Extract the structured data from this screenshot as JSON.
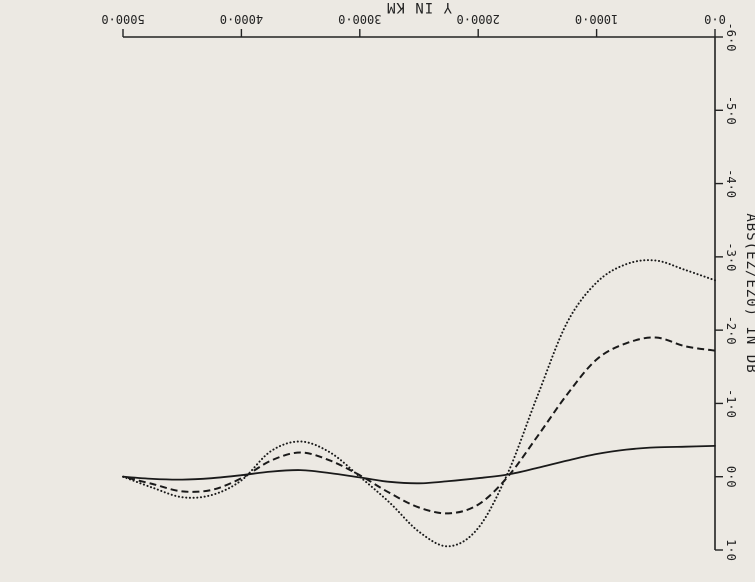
{
  "chart_data": {
    "type": "line",
    "orientation": "rotated-180",
    "title": "",
    "xlabel": "Y  IN  KM",
    "ylabel": "ABS(EZ/EZ0) IN DB",
    "xlim": [
      0,
      5000
    ],
    "ylim": [
      -6,
      1
    ],
    "x_ticks": [
      0,
      1000,
      2000,
      3000,
      4000,
      5000
    ],
    "x_tick_labels": [
      "0·0",
      "1000·0",
      "2000·0",
      "3000·0",
      "4000·0",
      "5000·0"
    ],
    "y_ticks": [
      1,
      0,
      -1,
      -2,
      -3,
      -4,
      -5,
      -6
    ],
    "y_tick_labels": [
      "1·0",
      "0·0",
      "-1·0",
      "-2·0",
      "-3·0",
      "-4·0",
      "-5·0",
      "-6·0"
    ],
    "grid": false,
    "legend": "none",
    "series": [
      {
        "style": "solid",
        "x": [
          0,
          250,
          500,
          750,
          1000,
          1250,
          1500,
          1750,
          2000,
          2250,
          2500,
          2750,
          3000,
          3250,
          3500,
          3750,
          4000,
          4250,
          4500,
          4750,
          5000
        ],
        "y": [
          -0.42,
          -0.41,
          -0.4,
          -0.37,
          -0.31,
          -0.22,
          -0.12,
          -0.03,
          0.02,
          0.06,
          0.09,
          0.07,
          0.01,
          -0.05,
          -0.09,
          -0.07,
          -0.02,
          0.02,
          0.04,
          0.03,
          0.0
        ]
      },
      {
        "style": "dashed",
        "x": [
          0,
          250,
          500,
          750,
          1000,
          1250,
          1500,
          1750,
          2000,
          2250,
          2500,
          2750,
          3000,
          3250,
          3500,
          3750,
          4000,
          4250,
          4500,
          4750,
          5000
        ],
        "y": [
          -1.72,
          -1.78,
          -1.9,
          -1.82,
          -1.6,
          -1.12,
          -0.55,
          0.0,
          0.38,
          0.5,
          0.42,
          0.22,
          -0.02,
          -0.22,
          -0.33,
          -0.22,
          0.02,
          0.18,
          0.2,
          0.1,
          0.0
        ]
      },
      {
        "style": "dotted",
        "x": [
          0,
          250,
          500,
          750,
          1000,
          1250,
          1500,
          1750,
          2000,
          2250,
          2500,
          2750,
          3000,
          3250,
          3500,
          3750,
          4000,
          4250,
          4500,
          4750,
          5000
        ],
        "y": [
          -2.68,
          -2.82,
          -2.95,
          -2.9,
          -2.65,
          -2.1,
          -1.1,
          -0.05,
          0.7,
          0.95,
          0.75,
          0.35,
          0.0,
          -0.33,
          -0.48,
          -0.35,
          0.05,
          0.25,
          0.28,
          0.15,
          0.0
        ]
      }
    ]
  }
}
